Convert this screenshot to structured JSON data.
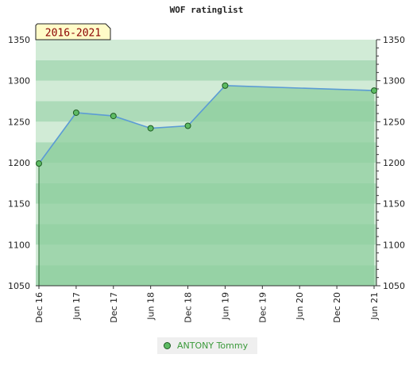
{
  "title": "WOF ratinglist",
  "period_badge": "2016-2021",
  "legend": {
    "label": "ANTONY Tommy"
  },
  "colors": {
    "line": "#5b9bd5",
    "area": "#8fcf9f",
    "marker_fill": "#5dbb63",
    "marker_stroke": "#1e5b22",
    "band_dark": "#9fd5ad",
    "band_light": "#c9e8cf",
    "badge_fill": "#fffbc8",
    "badge_text": "#8b0000"
  },
  "chart_data": {
    "type": "area",
    "title": "WOF ratinglist",
    "x": [
      "Dec 16",
      "Jun 17",
      "Dec 17",
      "Jun 18",
      "Dec 18",
      "Jun 19",
      "Dec 19",
      "Jun 20",
      "Dec 20",
      "Jun 21"
    ],
    "series": [
      {
        "name": "ANTONY Tommy",
        "points": [
          {
            "x": "Dec 16",
            "y": 1199
          },
          {
            "x": "Jun 17",
            "y": 1261
          },
          {
            "x": "Dec 17",
            "y": 1257
          },
          {
            "x": "Jun 18",
            "y": 1242
          },
          {
            "x": "Dec 18",
            "y": 1245
          },
          {
            "x": "Jun 19",
            "y": 1294
          },
          {
            "x": "Jun 21",
            "y": 1288
          }
        ]
      }
    ],
    "ylim": [
      1050,
      1350
    ],
    "yticks": [
      1050,
      1100,
      1150,
      1200,
      1250,
      1300,
      1350
    ],
    "grid": false,
    "legend_position": "bottom"
  }
}
